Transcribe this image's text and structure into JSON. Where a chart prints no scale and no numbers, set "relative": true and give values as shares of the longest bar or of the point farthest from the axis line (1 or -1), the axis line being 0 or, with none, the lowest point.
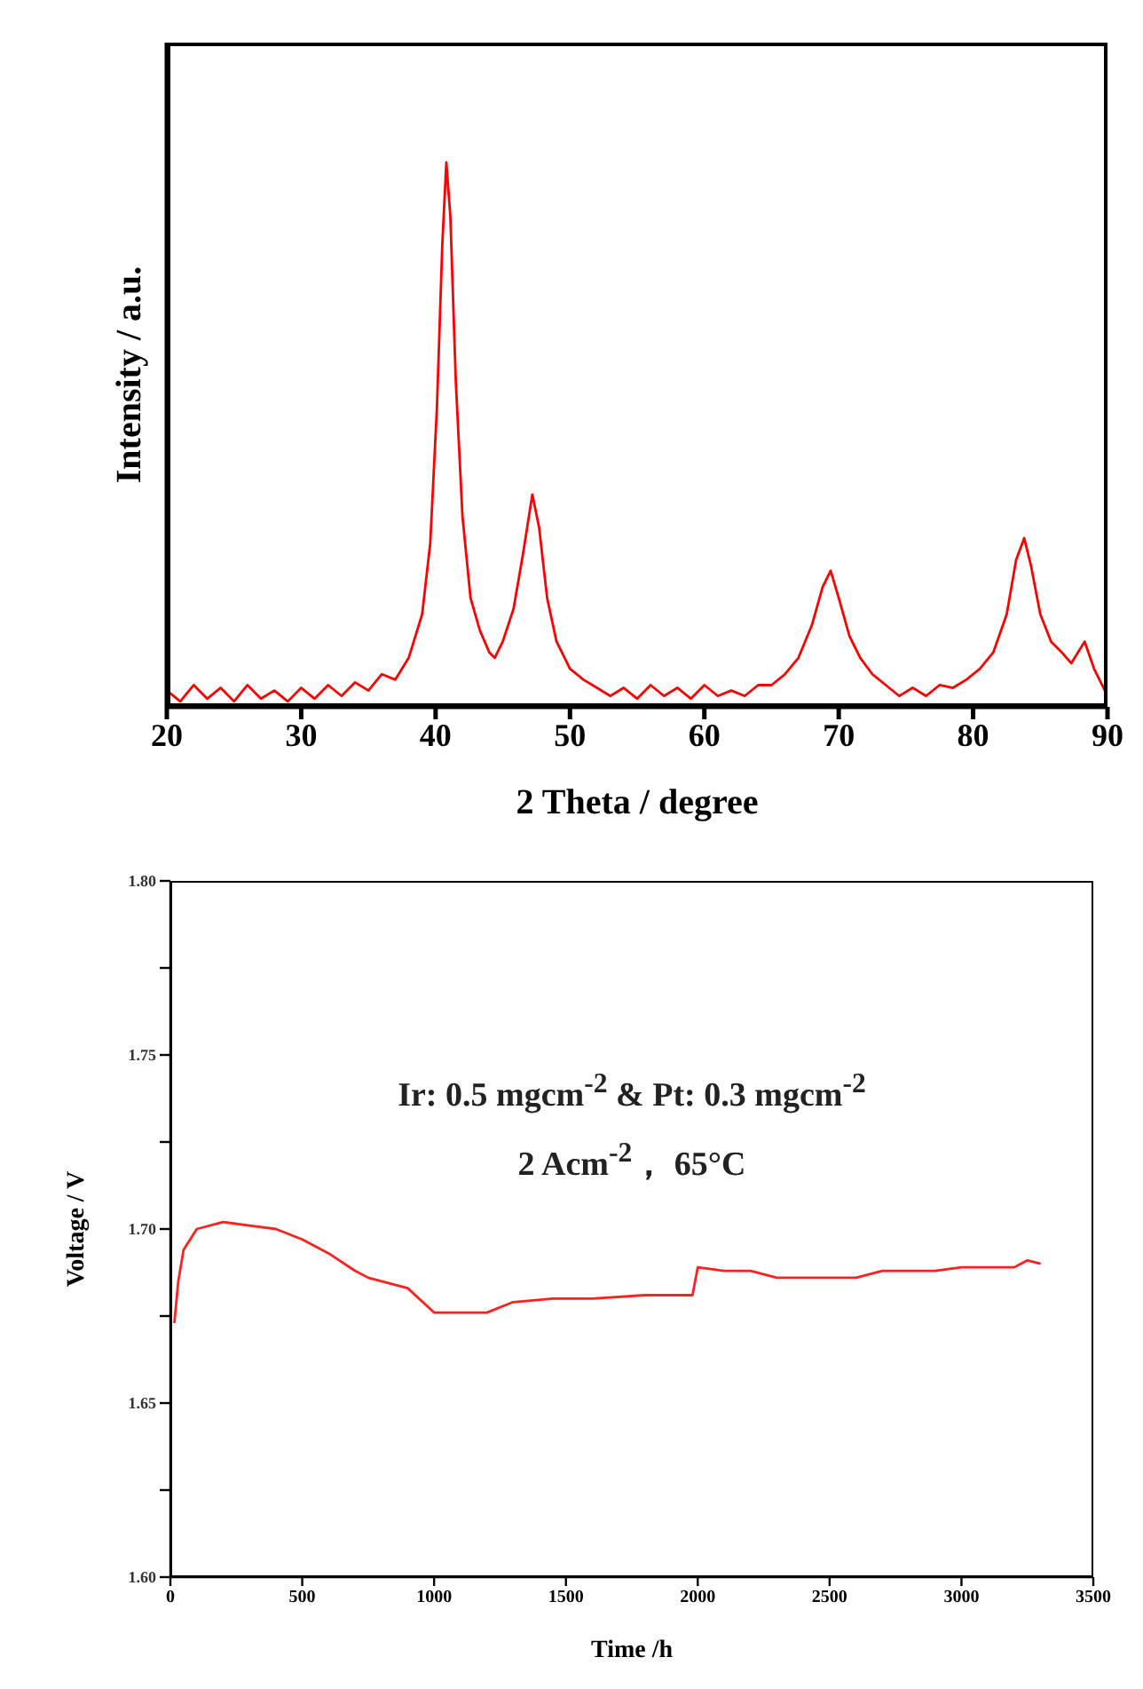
{
  "chart_data": [
    {
      "type": "line",
      "xlabel": "2 Theta / degree",
      "ylabel": "Intensity / a.u.",
      "relative": true,
      "xlim": [
        20,
        90
      ],
      "xticks": [
        20,
        30,
        40,
        50,
        60,
        70,
        80,
        90
      ],
      "tick_labels": "x",
      "x": [
        20,
        21,
        22,
        23,
        24,
        25,
        26,
        27,
        28,
        29,
        30,
        31,
        32,
        33,
        34,
        35,
        36,
        37,
        38,
        39,
        39.6,
        40.1,
        40.5,
        40.8,
        41.1,
        41.5,
        42,
        42.6,
        43.3,
        44,
        44.4,
        45,
        45.8,
        46.5,
        47.2,
        47.7,
        48.3,
        49,
        50,
        51,
        52,
        53,
        54,
        55,
        56,
        57,
        58,
        59,
        60,
        61,
        62,
        63,
        64,
        65,
        66,
        67,
        68,
        68.8,
        69.4,
        70,
        70.8,
        71.6,
        72.5,
        73.5,
        74.5,
        75.5,
        76.5,
        77.5,
        78.5,
        79.5,
        80.5,
        81.5,
        82.5,
        83.2,
        83.8,
        84.3,
        85,
        85.8,
        86.6,
        87.3,
        88.3,
        89,
        90
      ],
      "series": [
        {
          "color": "#ff0000",
          "values": [
            0.03,
            0.01,
            0.04,
            0.015,
            0.035,
            0.01,
            0.04,
            0.015,
            0.03,
            0.01,
            0.035,
            0.015,
            0.04,
            0.02,
            0.045,
            0.03,
            0.06,
            0.05,
            0.09,
            0.17,
            0.3,
            0.55,
            0.85,
            1.0,
            0.9,
            0.6,
            0.35,
            0.2,
            0.14,
            0.1,
            0.09,
            0.12,
            0.18,
            0.28,
            0.39,
            0.33,
            0.2,
            0.12,
            0.07,
            0.05,
            0.035,
            0.02,
            0.035,
            0.015,
            0.04,
            0.02,
            0.035,
            0.015,
            0.04,
            0.02,
            0.03,
            0.02,
            0.04,
            0.04,
            0.06,
            0.09,
            0.15,
            0.22,
            0.25,
            0.2,
            0.13,
            0.09,
            0.06,
            0.04,
            0.02,
            0.035,
            0.02,
            0.04,
            0.035,
            0.05,
            0.07,
            0.1,
            0.17,
            0.27,
            0.31,
            0.26,
            0.17,
            0.12,
            0.1,
            0.08,
            0.12,
            0.07,
            0.02
          ]
        }
      ]
    },
    {
      "type": "line",
      "xlabel": "Time /h",
      "ylabel": "Voltage / V",
      "xlim": [
        0,
        3500
      ],
      "xticks": [
        0,
        500,
        1000,
        1500,
        2000,
        2500,
        3000,
        3500
      ],
      "ylim": [
        1.6,
        1.8
      ],
      "yticks": [
        {
          "value": 1.6,
          "label": "1.60"
        },
        {
          "value": 1.625,
          "label": null
        },
        {
          "value": 1.65,
          "label": "1.65"
        },
        {
          "value": 1.675,
          "label": null
        },
        {
          "value": 1.7,
          "label": "1.70"
        },
        {
          "value": 1.725,
          "label": null
        },
        {
          "value": 1.75,
          "label": "1.75"
        },
        {
          "value": 1.775,
          "label": null
        },
        {
          "value": 1.8,
          "label": "1.80"
        }
      ],
      "annotations": [
        "Ir: 0.5 mgcm$^{-2}$ & Pt: 0.3 mgcm$^{-2}$",
        "2 Acm$^{-2}$，  65°C"
      ],
      "x": [
        15,
        30,
        50,
        100,
        200,
        300,
        400,
        500,
        600,
        700,
        750,
        900,
        1000,
        1100,
        1200,
        1300,
        1450,
        1600,
        1800,
        1980,
        2000,
        2100,
        2200,
        2300,
        2450,
        2600,
        2700,
        2900,
        3000,
        3200,
        3250,
        3300
      ],
      "series": [
        {
          "color": "#ff2020",
          "values": [
            1.673,
            1.685,
            1.694,
            1.7,
            1.702,
            1.701,
            1.7,
            1.697,
            1.693,
            1.688,
            1.686,
            1.683,
            1.676,
            1.676,
            1.676,
            1.679,
            1.68,
            1.68,
            1.681,
            1.681,
            1.689,
            1.688,
            1.688,
            1.686,
            1.686,
            1.686,
            1.688,
            1.688,
            1.689,
            1.689,
            1.691,
            1.69
          ]
        }
      ]
    }
  ]
}
